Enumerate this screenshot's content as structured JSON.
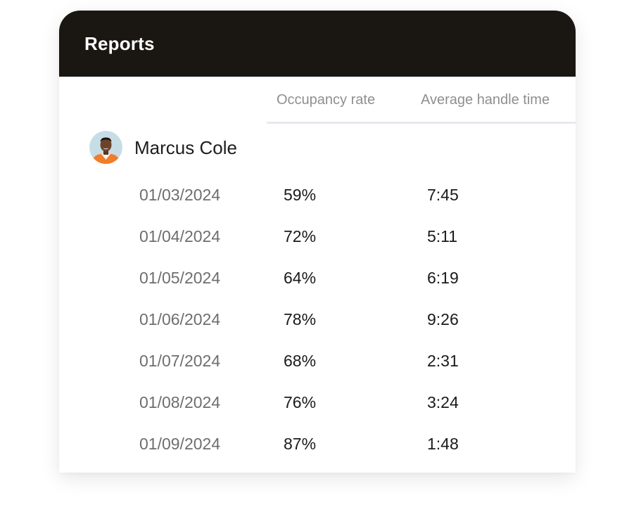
{
  "report": {
    "title": "Reports",
    "columns": {
      "occupancy": "Occupancy rate",
      "aht": "Average handle time"
    },
    "agent": {
      "name": "Marcus Cole",
      "avatar_icon": "person-avatar"
    },
    "rows": [
      {
        "date": "01/03/2024",
        "occupancy": "59%",
        "aht": "7:45"
      },
      {
        "date": "01/04/2024",
        "occupancy": "72%",
        "aht": "5:11"
      },
      {
        "date": "01/05/2024",
        "occupancy": "64%",
        "aht": "6:19"
      },
      {
        "date": "01/06/2024",
        "occupancy": "78%",
        "aht": "9:26"
      },
      {
        "date": "01/07/2024",
        "occupancy": "68%",
        "aht": "2:31"
      },
      {
        "date": "01/08/2024",
        "occupancy": "76%",
        "aht": "3:24"
      },
      {
        "date": "01/09/2024",
        "occupancy": "87%",
        "aht": "1:48"
      }
    ]
  },
  "colors": {
    "header_bg": "#1a1712",
    "header_text": "#ffffff",
    "column_header_text": "#8f8f8f",
    "rule": "#e8e7f1",
    "date_text": "#6e6e6e",
    "value_text": "#1a1a1a"
  }
}
